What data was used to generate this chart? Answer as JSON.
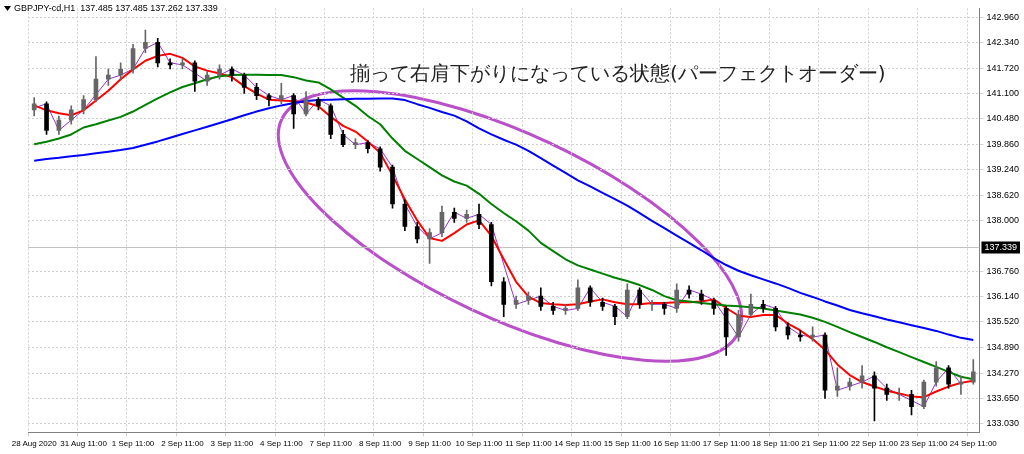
{
  "chart_data": {
    "type": "candlestick",
    "title": "GBPJPY-cd,H1  137.485 137.485 137.262 137.339",
    "annotations": [
      "揃って右肩下がりになっている状態(パーフェクトオーダー)"
    ],
    "categories": [
      "28 Aug 2020",
      null,
      null,
      null,
      "31 Aug 11:00",
      null,
      null,
      null,
      "1 Sep 11:00",
      null,
      null,
      null,
      "2 Sep 11:00",
      null,
      null,
      null,
      "3 Sep 11:00",
      null,
      null,
      null,
      "4 Sep 11:00",
      null,
      null,
      null,
      "7 Sep 11:00",
      null,
      null,
      null,
      "8 Sep 11:00",
      null,
      null,
      null,
      "9 Sep 11:00",
      null,
      null,
      null,
      "10 Sep 11:00",
      null,
      null,
      null,
      "11 Sep 11:00",
      null,
      null,
      null,
      "14 Sep 11:00",
      null,
      null,
      null,
      "15 Sep 11:00",
      null,
      null,
      null,
      "16 Sep 11:00",
      null,
      null,
      null,
      "17 Sep 11:00",
      null,
      null,
      null,
      "18 Sep 11:00",
      null,
      null,
      null,
      "21 Sep 11:00",
      null,
      null,
      null,
      "22 Sep 11:00",
      null,
      null,
      null,
      "23 Sep 11:00",
      null,
      null,
      null,
      "24 Sep 11:00"
    ],
    "colors": [
      "#666666",
      "#000000",
      "#666666",
      "#666666",
      "#666666",
      "#666666",
      "#666666",
      "#666666",
      "#666666",
      "#666666",
      "#000000",
      "#000000",
      "#666666",
      "#000000",
      "#666666",
      "#666666",
      "#000000",
      "#000000",
      "#000000",
      "#000000",
      "#666666",
      "#000000",
      "#666666",
      "#000000",
      "#000000",
      "#000000",
      "#666666",
      "#000000",
      "#000000",
      "#000000",
      "#000000",
      "#000000",
      "#666666",
      "#666666",
      "#000000",
      "#666666",
      "#000000",
      "#000000",
      "#000000",
      "#666666",
      "#666666",
      "#000000",
      "#000000",
      "#666666",
      "#666666",
      "#000000",
      "#000000",
      "#000000",
      "#666666",
      "#000000",
      "#666666",
      "#000000",
      "#666666",
      "#000000",
      "#000000",
      "#000000",
      "#000000",
      "#666666",
      "#666666",
      "#000000",
      "#000000",
      "#000000",
      "#000000",
      "#666666",
      "#000000",
      "#666666",
      "#666666",
      "#666666",
      "#000000",
      "#000000",
      "#666666",
      "#000000",
      "#666666",
      "#666666",
      "#000000",
      "#666666",
      "#666666"
    ],
    "ohlc": [
      [
        140.7,
        141.0,
        140.55,
        140.85
      ],
      [
        140.85,
        140.9,
        140.1,
        140.2
      ],
      [
        140.2,
        140.55,
        140.1,
        140.45
      ],
      [
        140.45,
        140.8,
        140.35,
        140.7
      ],
      [
        140.7,
        141.05,
        140.6,
        140.95
      ],
      [
        140.95,
        142.0,
        140.9,
        141.45
      ],
      [
        141.45,
        141.7,
        141.3,
        141.55
      ],
      [
        141.55,
        141.85,
        141.45,
        141.7
      ],
      [
        141.7,
        142.3,
        141.6,
        142.2
      ],
      [
        142.2,
        142.65,
        142.1,
        142.35
      ],
      [
        142.35,
        142.45,
        141.75,
        141.85
      ],
      [
        141.85,
        141.95,
        141.7,
        141.8
      ],
      [
        141.8,
        141.95,
        141.7,
        141.85
      ],
      [
        141.85,
        141.9,
        141.15,
        141.4
      ],
      [
        141.4,
        141.65,
        141.3,
        141.55
      ],
      [
        141.55,
        141.8,
        141.45,
        141.7
      ],
      [
        141.7,
        141.75,
        141.4,
        141.55
      ],
      [
        141.55,
        141.6,
        141.1,
        141.25
      ],
      [
        141.25,
        141.35,
        140.95,
        141.05
      ],
      [
        141.05,
        141.1,
        140.8,
        140.95
      ],
      [
        140.95,
        141.35,
        140.85,
        141.05
      ],
      [
        141.05,
        141.1,
        140.25,
        140.6
      ],
      [
        140.6,
        141.15,
        140.55,
        140.95
      ],
      [
        140.95,
        141.0,
        140.7,
        140.8
      ],
      [
        140.8,
        140.85,
        140.0,
        140.1
      ],
      [
        140.1,
        140.2,
        139.8,
        139.85
      ],
      [
        139.85,
        140.0,
        139.75,
        139.9
      ],
      [
        139.9,
        139.95,
        139.65,
        139.75
      ],
      [
        139.75,
        139.8,
        139.2,
        139.3
      ],
      [
        139.3,
        139.35,
        138.3,
        138.4
      ],
      [
        138.4,
        138.5,
        137.75,
        137.85
      ],
      [
        137.85,
        137.95,
        137.45,
        137.55
      ],
      [
        137.55,
        137.8,
        136.95,
        137.7
      ],
      [
        137.7,
        138.35,
        137.6,
        138.2
      ],
      [
        138.2,
        138.3,
        137.95,
        138.05
      ],
      [
        138.05,
        138.25,
        137.95,
        138.15
      ],
      [
        138.15,
        138.4,
        137.8,
        137.9
      ],
      [
        137.9,
        137.95,
        136.4,
        136.5
      ],
      [
        136.5,
        136.6,
        135.65,
        135.95
      ],
      [
        135.95,
        136.15,
        135.85,
        136.05
      ],
      [
        136.05,
        136.25,
        135.95,
        136.15
      ],
      [
        136.15,
        136.35,
        135.8,
        135.9
      ],
      [
        135.9,
        136.0,
        135.7,
        135.8
      ],
      [
        135.8,
        135.95,
        135.7,
        135.85
      ],
      [
        135.85,
        136.55,
        135.8,
        136.35
      ],
      [
        136.35,
        136.4,
        135.9,
        136.0
      ],
      [
        136.0,
        136.1,
        135.8,
        135.9
      ],
      [
        135.9,
        135.95,
        135.45,
        135.65
      ],
      [
        135.65,
        136.45,
        135.6,
        136.3
      ],
      [
        136.3,
        136.35,
        135.85,
        135.95
      ],
      [
        135.95,
        136.05,
        135.8,
        135.95
      ],
      [
        135.95,
        136.0,
        135.7,
        135.85
      ],
      [
        135.85,
        136.45,
        135.75,
        136.3
      ],
      [
        136.3,
        136.4,
        136.1,
        136.2
      ],
      [
        136.2,
        136.3,
        135.95,
        136.05
      ],
      [
        136.05,
        136.1,
        135.7,
        135.85
      ],
      [
        135.85,
        135.9,
        134.7,
        135.15
      ],
      [
        135.15,
        135.8,
        135.05,
        135.7
      ],
      [
        135.7,
        136.2,
        135.65,
        135.95
      ],
      [
        135.95,
        136.05,
        135.75,
        135.85
      ],
      [
        135.85,
        135.9,
        135.3,
        135.4
      ],
      [
        135.4,
        135.5,
        135.1,
        135.2
      ],
      [
        135.2,
        135.3,
        135.05,
        135.15
      ],
      [
        135.15,
        135.4,
        135.05,
        135.2
      ],
      [
        135.2,
        135.25,
        133.65,
        133.85
      ],
      [
        133.85,
        134.4,
        133.7,
        133.95
      ],
      [
        133.95,
        134.15,
        133.85,
        134.05
      ],
      [
        134.05,
        134.45,
        133.9,
        134.2
      ],
      [
        134.2,
        134.3,
        133.1,
        133.9
      ],
      [
        133.9,
        134.0,
        133.6,
        133.75
      ],
      [
        133.75,
        133.9,
        133.6,
        133.75
      ],
      [
        133.75,
        133.85,
        133.25,
        133.45
      ],
      [
        133.45,
        134.1,
        133.4,
        134.05
      ],
      [
        134.05,
        134.55,
        133.95,
        134.4
      ],
      [
        134.4,
        134.45,
        133.9,
        134.0
      ],
      [
        134.0,
        134.2,
        133.75,
        134.05
      ],
      [
        134.05,
        134.6,
        134.0,
        134.3
      ]
    ],
    "series": [
      {
        "type": "line",
        "color": "#0000ff",
        "values": [
          139.46,
          139.5,
          139.53,
          139.57,
          139.6,
          139.64,
          139.68,
          139.72,
          139.77,
          139.85,
          139.93,
          140.02,
          140.11,
          140.2,
          140.29,
          140.38,
          140.47,
          140.57,
          140.66,
          140.74,
          140.81,
          140.87,
          140.92,
          140.94,
          140.95,
          140.96,
          140.97,
          140.97,
          140.98,
          140.98,
          140.94,
          140.84,
          140.75,
          140.65,
          140.56,
          140.42,
          140.25,
          140.1,
          139.97,
          139.85,
          139.7,
          139.52,
          139.34,
          139.16,
          138.98,
          138.83,
          138.67,
          138.52,
          138.36,
          138.18,
          137.99,
          137.81,
          137.63,
          137.45,
          137.27,
          137.08,
          136.91,
          136.77,
          136.66,
          136.56,
          136.46,
          136.35,
          136.23,
          136.13,
          136.02,
          135.92,
          135.81,
          135.73,
          135.66,
          135.58,
          135.51,
          135.44,
          135.37,
          135.3,
          135.21,
          135.13,
          135.08
        ]
      },
      {
        "type": "line",
        "color": "#008000",
        "values": [
          139.86,
          139.92,
          140.0,
          140.1,
          140.27,
          140.35,
          140.44,
          140.53,
          140.66,
          140.82,
          140.98,
          141.13,
          141.26,
          141.35,
          141.45,
          141.52,
          141.55,
          141.56,
          141.56,
          141.55,
          141.55,
          141.5,
          141.42,
          141.37,
          141.2,
          141.0,
          140.8,
          140.55,
          140.35,
          140.0,
          139.7,
          139.5,
          139.3,
          139.1,
          138.95,
          138.85,
          138.65,
          138.4,
          138.18,
          137.98,
          137.75,
          137.45,
          137.25,
          137.05,
          136.9,
          136.8,
          136.7,
          136.6,
          136.52,
          136.42,
          136.3,
          136.15,
          136.05,
          136.02,
          135.98,
          135.95,
          135.92,
          135.9,
          135.88,
          135.85,
          135.8,
          135.75,
          135.7,
          135.62,
          135.52,
          135.4,
          135.27,
          135.15,
          135.03,
          134.9,
          134.78,
          134.66,
          134.54,
          134.42,
          134.3,
          134.18,
          134.12
        ]
      },
      {
        "type": "line",
        "color": "#ff0000",
        "values": [
          140.81,
          140.69,
          140.62,
          140.57,
          140.69,
          140.93,
          141.17,
          141.45,
          141.69,
          141.9,
          142.02,
          142.07,
          141.97,
          141.76,
          141.66,
          141.59,
          141.5,
          141.28,
          141.1,
          140.95,
          140.93,
          140.91,
          140.88,
          140.79,
          140.53,
          140.31,
          140.17,
          139.93,
          139.65,
          139.1,
          138.51,
          138.0,
          137.57,
          137.5,
          137.69,
          137.9,
          138.0,
          137.62,
          137.05,
          136.5,
          136.14,
          135.98,
          135.95,
          135.93,
          135.95,
          136.02,
          136.07,
          136.0,
          135.95,
          135.95,
          135.98,
          135.98,
          136.0,
          136.0,
          136.02,
          136.07,
          135.86,
          135.67,
          135.64,
          135.69,
          135.69,
          135.48,
          135.31,
          135.1,
          134.84,
          134.48,
          134.22,
          134.05,
          133.94,
          133.84,
          133.77,
          133.7,
          133.68,
          133.82,
          133.94,
          134.03,
          134.08
        ]
      },
      {
        "type": "line",
        "color": "#9932cc",
        "values": [
          140.75,
          140.85,
          140.2,
          140.45,
          140.7,
          null,
          141.45,
          141.55,
          141.7,
          142.2,
          142.35,
          141.85,
          141.8,
          null,
          141.4,
          141.55,
          141.7,
          141.55,
          141.25,
          141.05,
          140.95,
          141.05,
          140.6,
          140.95,
          140.8,
          140.1,
          139.85,
          139.9,
          139.75,
          139.3,
          138.4,
          137.85,
          137.55,
          137.7,
          138.2,
          138.05,
          138.15,
          137.9,
          null,
          135.95,
          136.05,
          136.15,
          135.9,
          135.8,
          135.85,
          136.35,
          136.0,
          135.9,
          135.65,
          136.3,
          135.95,
          135.95,
          135.85,
          136.3,
          136.2,
          136.05,
          null,
          135.15,
          135.7,
          135.95,
          135.85,
          135.4,
          135.2,
          135.15,
          135.2,
          133.85,
          133.95,
          134.05,
          134.2,
          133.9,
          133.75,
          null,
          133.45,
          134.05,
          134.4,
          134.0,
          null
        ]
      }
    ],
    "ylim": [
      132.82,
      143.18
    ],
    "yticks": [
      {
        "value": 142.96,
        "label": "142.960"
      },
      {
        "value": 142.34,
        "label": "142.340"
      },
      {
        "value": 141.72,
        "label": "141.720"
      },
      {
        "value": 141.1,
        "label": "141.100"
      },
      {
        "value": 140.48,
        "label": "140.480"
      },
      {
        "value": 139.86,
        "label": "139.860"
      },
      {
        "value": 139.24,
        "label": "139.240"
      },
      {
        "value": 138.62,
        "label": "138.620"
      },
      {
        "value": 138.0,
        "label": "138.000"
      },
      {
        "value": 136.76,
        "label": "136.760"
      },
      {
        "value": 136.14,
        "label": "136.140"
      },
      {
        "value": 135.52,
        "label": "135.520"
      },
      {
        "value": 134.89,
        "label": "134.890"
      },
      {
        "value": 134.27,
        "label": "134.270"
      },
      {
        "value": 133.65,
        "label": "133.650"
      },
      {
        "value": 133.03,
        "label": "133.030"
      }
    ],
    "ref_lines": [
      {
        "axis": "y",
        "value": 137.339,
        "label": "137.339",
        "color": "#c0c0c0"
      }
    ],
    "grid": true,
    "legend": false,
    "marker": "none"
  }
}
